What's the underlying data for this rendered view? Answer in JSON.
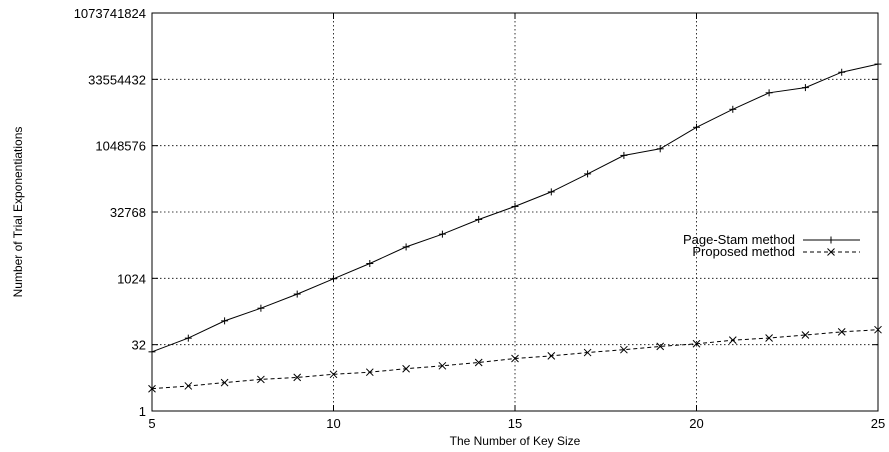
{
  "chart_data": {
    "type": "line",
    "xlabel": "The Number of Key Size",
    "ylabel": "Number of Trial Exponentiations",
    "xlim": [
      5,
      25
    ],
    "ylim": [
      1,
      1073741824
    ],
    "yscale": "log2",
    "grid": true,
    "legend_position": "right",
    "x_ticks": [
      5,
      10,
      15,
      20,
      25
    ],
    "x_tick_labels": [
      "5",
      "10",
      "15",
      "20",
      "25"
    ],
    "y_ticks": [
      1,
      32,
      1024,
      32768,
      1048576,
      33554432,
      1073741824
    ],
    "y_tick_labels": [
      "1",
      "32",
      "1024",
      "32768",
      "1048576",
      "33554432",
      "1073741824"
    ],
    "x": [
      5,
      6,
      7,
      8,
      9,
      10,
      11,
      12,
      13,
      14,
      15,
      16,
      17,
      18,
      19,
      20,
      21,
      22,
      23,
      24,
      25
    ],
    "series": [
      {
        "name": "Page-Stam method",
        "marker": "plus",
        "line": "solid",
        "values": [
          22,
          45,
          111,
          215,
          450,
          1000,
          2220,
          5280,
          10300,
          22200,
          43800,
          93700,
          240000,
          630000,
          890000,
          2740000,
          7010000,
          16600000,
          21800000,
          48600000,
          74400000
        ]
      },
      {
        "name": "Proposed method",
        "marker": "cross",
        "line": "dashed",
        "values": [
          3.2,
          3.7,
          4.4,
          5.2,
          5.8,
          6.8,
          7.6,
          9.1,
          10.6,
          12.6,
          15.5,
          17.8,
          21.2,
          24.6,
          29.3,
          33.5,
          40.5,
          45.3,
          53.1,
          62.3,
          70
        ]
      }
    ]
  }
}
